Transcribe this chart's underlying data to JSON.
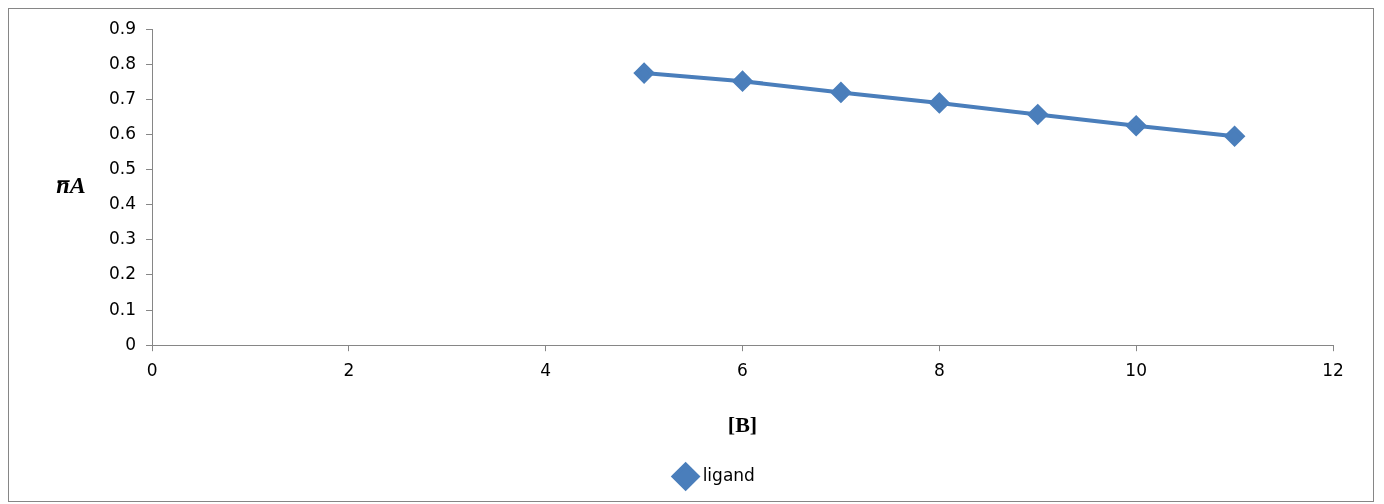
{
  "chart_data": {
    "type": "line",
    "xlabel": "[B]",
    "ylabel": "n̅A",
    "x": [
      5,
      6,
      7,
      8,
      9,
      10,
      11
    ],
    "series": [
      {
        "name": "ligand",
        "color": "#4a7ebb",
        "values": [
          0.775,
          0.752,
          0.72,
          0.69,
          0.657,
          0.625,
          0.595
        ]
      }
    ],
    "xlim": [
      0,
      12
    ],
    "xticks": [
      0,
      2,
      4,
      6,
      8,
      10,
      12
    ],
    "ylim": [
      0,
      0.9
    ],
    "yticks": [
      0,
      0.1,
      0.2,
      0.3,
      0.4,
      0.5,
      0.6,
      0.7,
      0.8,
      0.9
    ],
    "grid": false,
    "legend": "bottom",
    "marker": "diamond",
    "line_style": "solid"
  }
}
